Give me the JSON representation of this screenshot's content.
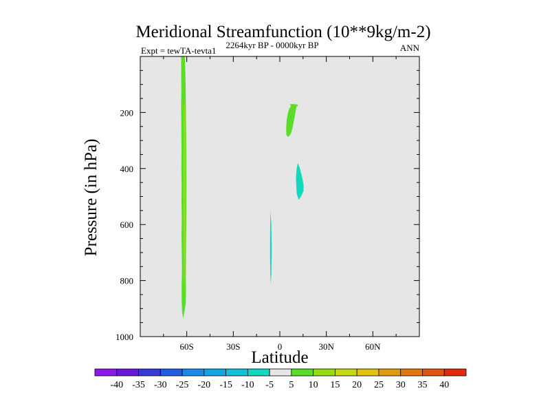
{
  "chart_data": {
    "type": "contour",
    "title": "Meridional Streamfunction (10**9kg/m-2)",
    "left_subtitle": "Expt = tewTA-tevta1",
    "center_subtitle": "2264kyr BP - 0000kyr BP",
    "right_subtitle": "ANN",
    "xlabel": "Latitude",
    "ylabel": "Pressure (in hPa)",
    "xlim": [
      -90,
      90
    ],
    "ylim": [
      1000,
      0
    ],
    "x_ticks": [
      {
        "value": -60,
        "label": "60S"
      },
      {
        "value": -30,
        "label": "30S"
      },
      {
        "value": 0,
        "label": "0"
      },
      {
        "value": 30,
        "label": "30N"
      },
      {
        "value": 60,
        "label": "60N"
      }
    ],
    "y_ticks": [
      {
        "value": 200,
        "label": "200"
      },
      {
        "value": 400,
        "label": "400"
      },
      {
        "value": 600,
        "label": "600"
      },
      {
        "value": 800,
        "label": "800"
      },
      {
        "value": 1000,
        "label": "1000"
      }
    ],
    "background_level_color": "#e6e6e6",
    "colorbar": {
      "labels": [
        "-40",
        "-35",
        "-30",
        "-25",
        "-20",
        "-15",
        "-10",
        "-5",
        "5",
        "10",
        "15",
        "20",
        "25",
        "30",
        "35",
        "40"
      ],
      "colors": [
        "#8b1ae8",
        "#6a16d8",
        "#3a3ad6",
        "#1f5ee0",
        "#1a8ae6",
        "#12a6e0",
        "#0fc2d8",
        "#12d8c0",
        "#e6e6e6",
        "#5adc28",
        "#96dc14",
        "#c4d814",
        "#e0c212",
        "#e09a12",
        "#e07812",
        "#e05412",
        "#e02c0c"
      ]
    },
    "regions": [
      {
        "name": "region-5-10-near-60S",
        "level": "5 to 10",
        "color": "#5adc28",
        "outline": [
          [
            -63.6,
            0
          ],
          [
            -61.3,
            0
          ],
          [
            -61.0,
            40
          ],
          [
            -60.8,
            90
          ],
          [
            -60.6,
            160
          ],
          [
            -60.5,
            220
          ],
          [
            -60.4,
            300
          ],
          [
            -60.3,
            380
          ],
          [
            -60.2,
            460
          ],
          [
            -60.3,
            540
          ],
          [
            -60.4,
            620
          ],
          [
            -60.5,
            700
          ],
          [
            -60.6,
            780
          ],
          [
            -60.5,
            840
          ],
          [
            -60.6,
            880
          ],
          [
            -61.5,
            910
          ],
          [
            -62.3,
            935
          ],
          [
            -63.0,
            912
          ],
          [
            -63.3,
            870
          ],
          [
            -63.3,
            820
          ],
          [
            -63.1,
            760
          ],
          [
            -63.2,
            700
          ],
          [
            -63.4,
            640
          ],
          [
            -63.2,
            580
          ],
          [
            -63.4,
            520
          ],
          [
            -63.3,
            460
          ],
          [
            -63.5,
            400
          ],
          [
            -63.4,
            340
          ],
          [
            -63.5,
            260
          ],
          [
            -63.6,
            180
          ],
          [
            -63.5,
            120
          ],
          [
            -63.6,
            60
          ]
        ]
      },
      {
        "name": "region-10-15-near-60S",
        "level": "10 to 15",
        "color": "#96dc14",
        "outline": [
          [
            -61.6,
            150
          ],
          [
            -61.0,
            200
          ],
          [
            -60.9,
            300
          ],
          [
            -60.8,
            420
          ],
          [
            -60.9,
            560
          ],
          [
            -61.1,
            700
          ],
          [
            -61.4,
            790
          ],
          [
            -61.6,
            840
          ],
          [
            -61.9,
            790
          ],
          [
            -62.1,
            700
          ],
          [
            -62.2,
            560
          ],
          [
            -62.2,
            420
          ],
          [
            -62.1,
            300
          ],
          [
            -62.0,
            200
          ]
        ]
      },
      {
        "name": "region-5-10-near-10N",
        "level": "5 to 10",
        "color": "#5adc28",
        "outline": [
          [
            6.5,
            170
          ],
          [
            9.3,
            170
          ],
          [
            11.5,
            172
          ],
          [
            11.6,
            178
          ],
          [
            10.8,
            178
          ],
          [
            10.2,
            195
          ],
          [
            9.6,
            215
          ],
          [
            8.9,
            235
          ],
          [
            8.2,
            255
          ],
          [
            7.2,
            275
          ],
          [
            5.4,
            288
          ],
          [
            4.2,
            280
          ],
          [
            4.1,
            255
          ],
          [
            4.5,
            225
          ],
          [
            5.3,
            200
          ],
          [
            6.2,
            185
          ],
          [
            7.2,
            178
          ]
        ]
      },
      {
        "name": "region-neg10-neg5-near-10N",
        "level": "-10 to -5",
        "color": "#12d8c0",
        "outline": [
          [
            11.6,
            380
          ],
          [
            13.0,
            400
          ],
          [
            14.3,
            430
          ],
          [
            15.4,
            460
          ],
          [
            15.3,
            480
          ],
          [
            14.0,
            496
          ],
          [
            12.2,
            512
          ],
          [
            10.9,
            490
          ],
          [
            10.6,
            460
          ],
          [
            10.4,
            430
          ],
          [
            10.9,
            400
          ]
        ]
      },
      {
        "name": "region-neg10-neg5-near-5S",
        "level": "-10 to -5",
        "color": "#12d8c0",
        "outline": [
          [
            -6.0,
            550
          ],
          [
            -5.5,
            600
          ],
          [
            -5.3,
            660
          ],
          [
            -5.3,
            720
          ],
          [
            -5.5,
            780
          ],
          [
            -5.8,
            815
          ],
          [
            -6.1,
            780
          ],
          [
            -6.3,
            720
          ],
          [
            -6.3,
            660
          ],
          [
            -6.2,
            600
          ]
        ]
      }
    ]
  }
}
